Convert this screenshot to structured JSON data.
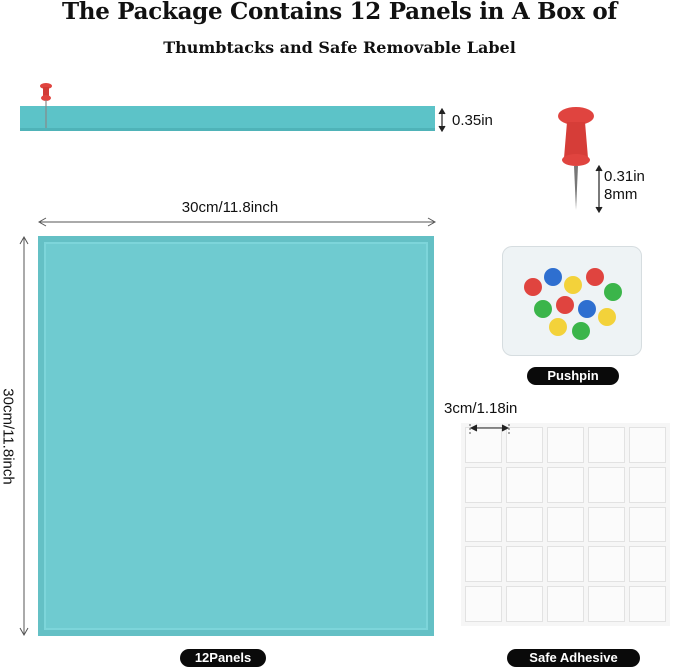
{
  "title": {
    "line1": "The Package Contains 12 Panels in A Box of",
    "line2": "Thumbtacks and Safe Removable Label"
  },
  "dimensions": {
    "thickness": "0.35in",
    "pin_length_in": "0.31in",
    "pin_length_mm": "8mm",
    "width": "30cm/11.8inch",
    "height": "30cm/11.8inch",
    "adhesive_size": "3cm/1.18in"
  },
  "labels": {
    "panels": "12Panels",
    "pushpin": "Pushpin",
    "adhesive": "Safe Adhesive"
  },
  "colors": {
    "panel": "#6fcbd0",
    "pin": "#e0443f"
  }
}
